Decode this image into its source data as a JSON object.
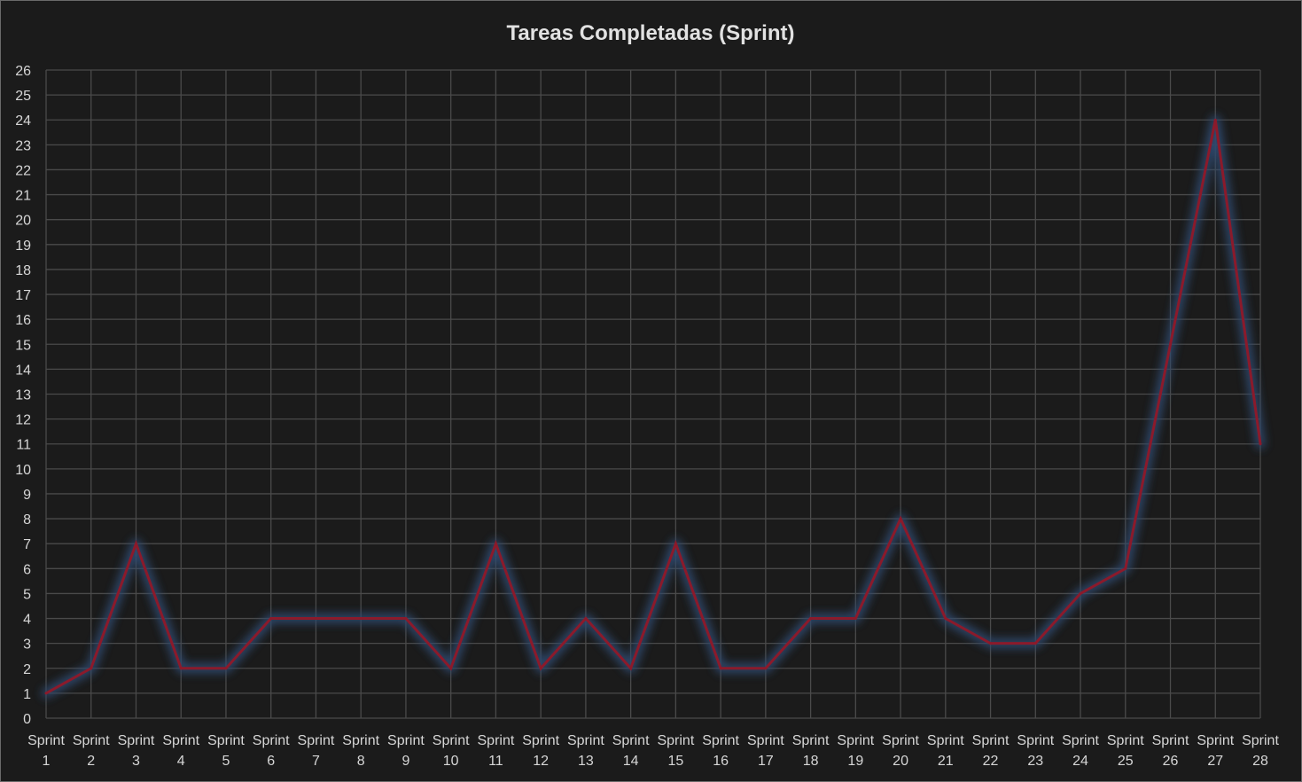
{
  "chart_data": {
    "type": "line",
    "title": "Tareas Completadas (Sprint)",
    "xlabel": "",
    "ylabel": "",
    "categories": [
      [
        "Sprint",
        "1"
      ],
      [
        "Sprint",
        "2"
      ],
      [
        "Sprint",
        "3"
      ],
      [
        "Sprint",
        "4"
      ],
      [
        "Sprint",
        "5"
      ],
      [
        "Sprint",
        "6"
      ],
      [
        "Sprint",
        "7"
      ],
      [
        "Sprint",
        "8"
      ],
      [
        "Sprint",
        "9"
      ],
      [
        "Sprint",
        "10"
      ],
      [
        "Sprint",
        "11"
      ],
      [
        "Sprint",
        "12"
      ],
      [
        "Sprint",
        "13"
      ],
      [
        "Sprint",
        "14"
      ],
      [
        "Sprint",
        "15"
      ],
      [
        "Sprint",
        "16"
      ],
      [
        "Sprint",
        "17"
      ],
      [
        "Sprint",
        "18"
      ],
      [
        "Sprint",
        "19"
      ],
      [
        "Sprint",
        "20"
      ],
      [
        "Sprint",
        "21"
      ],
      [
        "Sprint",
        "22"
      ],
      [
        "Sprint",
        "23"
      ],
      [
        "Sprint",
        "24"
      ],
      [
        "Sprint",
        "25"
      ],
      [
        "Sprint",
        "26"
      ],
      [
        "Sprint",
        "27"
      ],
      [
        "Sprint",
        "28"
      ]
    ],
    "series": [
      {
        "values": [
          1,
          2,
          7,
          2,
          2,
          4,
          4,
          4,
          4,
          2,
          7,
          2,
          4,
          2,
          7,
          2,
          2,
          4,
          4,
          8,
          4,
          3,
          3,
          5,
          6,
          15,
          24,
          11
        ],
        "color": "#8b1a2b",
        "glow_color": "#2e4a6e"
      }
    ],
    "ylim": [
      0,
      26
    ],
    "y_ticks": [
      0,
      1,
      2,
      3,
      4,
      5,
      6,
      7,
      8,
      9,
      10,
      11,
      12,
      13,
      14,
      15,
      16,
      17,
      18,
      19,
      20,
      21,
      22,
      23,
      24,
      25,
      26
    ],
    "grid": true,
    "legend": "none",
    "colors": {
      "background": "#1b1b1b",
      "grid": "#4a4a4a",
      "text": "#d6d6d6"
    }
  }
}
